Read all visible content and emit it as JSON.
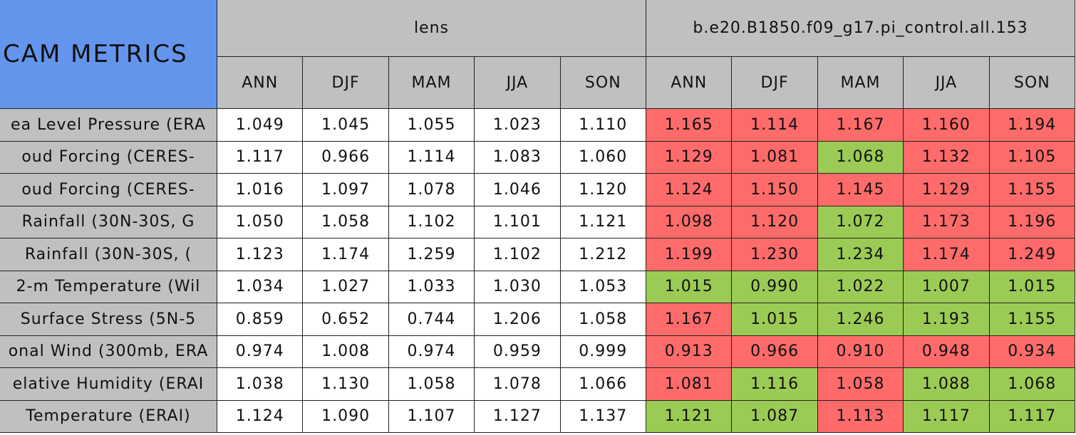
{
  "table": {
    "title": "CAM METRICS",
    "groups": [
      {
        "name": "lens",
        "seasons": [
          "ANN",
          "DJF",
          "MAM",
          "JJA",
          "SON"
        ]
      },
      {
        "name": "b.e20.B1850.f09_g17.pi_control.all.153",
        "seasons": [
          "ANN",
          "DJF",
          "MAM",
          "JJA",
          "SON"
        ]
      }
    ],
    "rows": [
      {
        "label": "ea Level Pressure (ERA",
        "lens": [
          "1.049",
          "1.045",
          "1.055",
          "1.023",
          "1.110"
        ],
        "control": [
          "1.165",
          "1.114",
          "1.167",
          "1.160",
          "1.194"
        ],
        "control_colors": [
          "#ff6b6b",
          "#ff6b6b",
          "#ff6b6b",
          "#ff6b6b",
          "#ff6b6b"
        ]
      },
      {
        "label": "oud Forcing (CERES-",
        "lens": [
          "1.117",
          "0.966",
          "1.114",
          "1.083",
          "1.060"
        ],
        "control": [
          "1.129",
          "1.081",
          "1.068",
          "1.132",
          "1.105"
        ],
        "control_colors": [
          "#ff6b6b",
          "#ff6b6b",
          "#9ccb55",
          "#ff6b6b",
          "#ff6b6b"
        ]
      },
      {
        "label": "oud Forcing (CERES-",
        "lens": [
          "1.016",
          "1.097",
          "1.078",
          "1.046",
          "1.120"
        ],
        "control": [
          "1.124",
          "1.150",
          "1.145",
          "1.129",
          "1.155"
        ],
        "control_colors": [
          "#ff6b6b",
          "#ff6b6b",
          "#ff6b6b",
          "#ff6b6b",
          "#ff6b6b"
        ]
      },
      {
        "label": "Rainfall (30N-30S, G",
        "lens": [
          "1.050",
          "1.058",
          "1.102",
          "1.101",
          "1.121"
        ],
        "control": [
          "1.098",
          "1.120",
          "1.072",
          "1.173",
          "1.196"
        ],
        "control_colors": [
          "#ff6b6b",
          "#ff6b6b",
          "#9ccb55",
          "#ff6b6b",
          "#ff6b6b"
        ]
      },
      {
        "label": "Rainfall (30N-30S, (",
        "lens": [
          "1.123",
          "1.174",
          "1.259",
          "1.102",
          "1.212"
        ],
        "control": [
          "1.199",
          "1.230",
          "1.234",
          "1.174",
          "1.249"
        ],
        "control_colors": [
          "#ff6b6b",
          "#ff6b6b",
          "#9ccb55",
          "#ff6b6b",
          "#ff6b6b"
        ]
      },
      {
        "label": "2-m Temperature (Wil",
        "lens": [
          "1.034",
          "1.027",
          "1.033",
          "1.030",
          "1.053"
        ],
        "control": [
          "1.015",
          "0.990",
          "1.022",
          "1.007",
          "1.015"
        ],
        "control_colors": [
          "#9ccb55",
          "#9ccb55",
          "#9ccb55",
          "#9ccb55",
          "#9ccb55"
        ]
      },
      {
        "label": "Surface Stress (5N-5",
        "lens": [
          "0.859",
          "0.652",
          "0.744",
          "1.206",
          "1.058"
        ],
        "control": [
          "1.167",
          "1.015",
          "1.246",
          "1.193",
          "1.155"
        ],
        "control_colors": [
          "#ff6b6b",
          "#9ccb55",
          "#9ccb55",
          "#9ccb55",
          "#9ccb55"
        ]
      },
      {
        "label": "onal Wind (300mb, ERA",
        "lens": [
          "0.974",
          "1.008",
          "0.974",
          "0.959",
          "0.999"
        ],
        "control": [
          "0.913",
          "0.966",
          "0.910",
          "0.948",
          "0.934"
        ],
        "control_colors": [
          "#ff6b6b",
          "#ff6b6b",
          "#ff6b6b",
          "#ff6b6b",
          "#ff6b6b"
        ]
      },
      {
        "label": "elative Humidity (ERAI",
        "lens": [
          "1.038",
          "1.130",
          "1.058",
          "1.078",
          "1.066"
        ],
        "control": [
          "1.081",
          "1.116",
          "1.058",
          "1.088",
          "1.068"
        ],
        "control_colors": [
          "#ff6b6b",
          "#9ccb55",
          "#ff6b6b",
          "#9ccb55",
          "#9ccb55"
        ]
      },
      {
        "label": "Temperature (ERAI)",
        "lens": [
          "1.124",
          "1.090",
          "1.107",
          "1.127",
          "1.137"
        ],
        "control": [
          "1.121",
          "1.087",
          "1.113",
          "1.117",
          "1.117"
        ],
        "control_colors": [
          "#9ccb55",
          "#9ccb55",
          "#ff6b6b",
          "#9ccb55",
          "#9ccb55"
        ]
      }
    ]
  }
}
